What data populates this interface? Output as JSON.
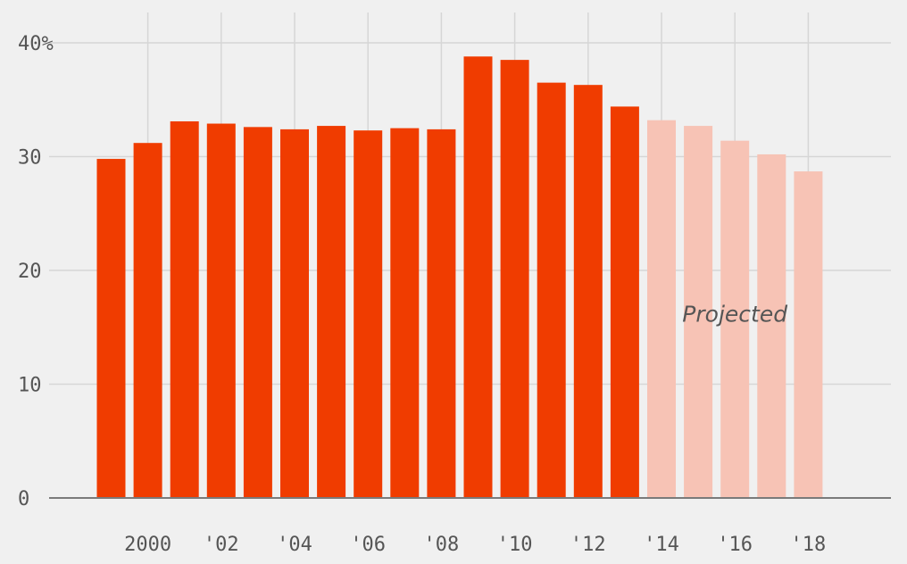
{
  "chart_data": {
    "type": "bar",
    "title": "",
    "xlabel": "",
    "ylabel": "",
    "ylim": [
      0,
      40
    ],
    "y_ticks": [
      0,
      10,
      20,
      30,
      40
    ],
    "y_tick_labels": [
      "0",
      "10",
      "20",
      "30",
      "40%"
    ],
    "x_ticks": [
      2000,
      2002,
      2004,
      2006,
      2008,
      2010,
      2012,
      2014,
      2016,
      2018
    ],
    "x_tick_labels": [
      "2000",
      "'02",
      "'04",
      "'06",
      "'08",
      "'10",
      "'12",
      "'14",
      "'16",
      "'18"
    ],
    "categories": [
      1999,
      2000,
      2001,
      2002,
      2003,
      2004,
      2005,
      2006,
      2007,
      2008,
      2009,
      2010,
      2011,
      2012,
      2013,
      2014,
      2015,
      2016,
      2017,
      2018
    ],
    "values": [
      29.8,
      31.2,
      33.1,
      32.9,
      32.6,
      32.4,
      32.7,
      32.3,
      32.5,
      32.4,
      38.8,
      38.5,
      36.5,
      36.3,
      34.4,
      33.2,
      32.7,
      31.4,
      30.2,
      28.7
    ],
    "projected": [
      false,
      false,
      false,
      false,
      false,
      false,
      false,
      false,
      false,
      false,
      false,
      false,
      false,
      false,
      false,
      true,
      true,
      true,
      true,
      true
    ],
    "annotation": "Projected",
    "colors": {
      "actual": "#f03c00",
      "projected": "#f7c3b5",
      "grid": "#d6d6d6",
      "axis": "#7a7a7a",
      "text": "#555555"
    },
    "grid": true
  }
}
